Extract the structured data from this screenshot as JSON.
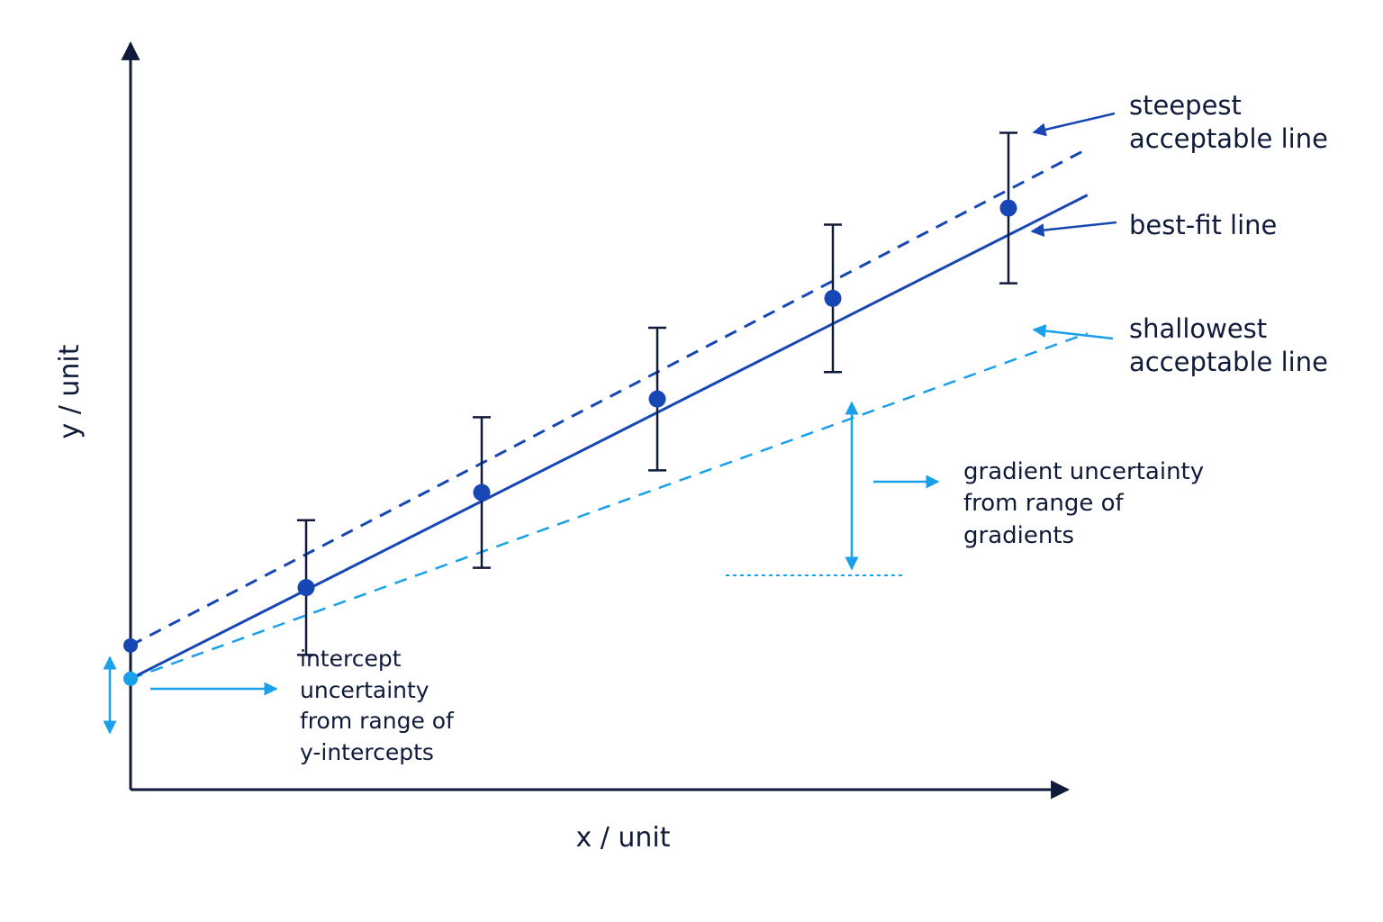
{
  "colors": {
    "axis": "#101a3a",
    "dark_blue": "#1747b5",
    "light_blue": "#19a0ea",
    "error_bar": "#101a3a",
    "text": "#101a3a"
  },
  "labels": {
    "xlabel": "x / unit",
    "ylabel": "y / unit",
    "steepest": [
      "steepest",
      "acceptable line"
    ],
    "best_fit": "best-fit line",
    "shallowest": [
      "shallowest",
      "acceptable line"
    ],
    "gradient_uncertainty": [
      "gradient uncertainty",
      "from range of",
      "gradients"
    ],
    "intercept_uncertainty": [
      "intercept",
      "uncertainty",
      "from range of",
      "y-intercepts"
    ]
  },
  "chart_data": {
    "type": "scatter",
    "xlabel": "x / unit",
    "ylabel": "y / unit",
    "axis_ticks": "none",
    "grid": false,
    "points": [
      {
        "x": 1.0,
        "y": 2.55,
        "err": 0.85
      },
      {
        "x": 2.0,
        "y": 3.75,
        "err": 0.95
      },
      {
        "x": 3.0,
        "y": 4.93,
        "err": 0.9
      },
      {
        "x": 4.0,
        "y": 6.2,
        "err": 0.93
      },
      {
        "x": 5.0,
        "y": 7.34,
        "err": 0.95
      }
    ],
    "lines": [
      {
        "name": "steepest acceptable line",
        "style": "dashed",
        "color": "dark_blue",
        "intercept": 1.82,
        "slope": 1.15,
        "x_end": 5.45
      },
      {
        "name": "best-fit line",
        "style": "solid",
        "color": "dark_blue",
        "intercept": 1.4,
        "slope": 1.12,
        "x_end": 5.45
      },
      {
        "name": "shallowest acceptable line",
        "style": "dashed",
        "color": "light_blue",
        "intercept": 1.4,
        "slope": 0.8,
        "x_end": 5.45
      }
    ],
    "intercepts": {
      "high": 1.82,
      "low": 1.4
    }
  }
}
